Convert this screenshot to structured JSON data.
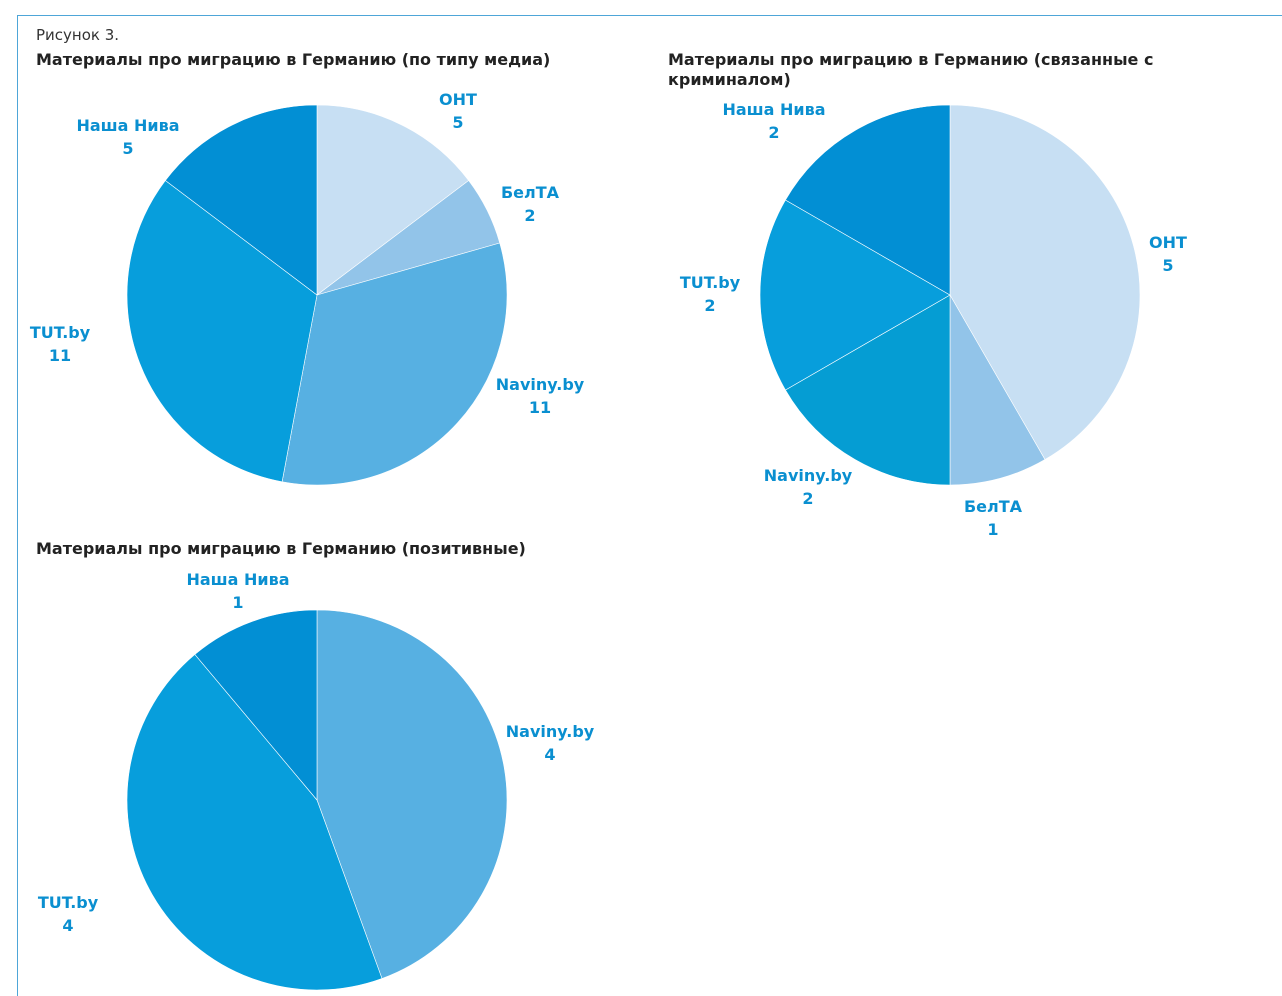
{
  "figure": {
    "caption": "Рисунок 3."
  },
  "chart_data": [
    {
      "type": "pie",
      "title": "Материалы про миграцию в Германию (по типу медиа)",
      "slices": [
        {
          "label": "ОНТ",
          "value": 5,
          "color": "#c7dff3"
        },
        {
          "label": "БелТА",
          "value": 2,
          "color": "#92c4e9"
        },
        {
          "label": "Naviny.by",
          "value": 11,
          "color": "#57b0e2"
        },
        {
          "label": "TUT.by",
          "value": 11,
          "color": "#079edc"
        },
        {
          "label": "Наша Нива",
          "value": 5,
          "color": "#028fd4"
        }
      ]
    },
    {
      "type": "pie",
      "title": "Материалы про миграцию в Германию (связанные с криминалом)",
      "slices": [
        {
          "label": "ОНТ",
          "value": 5,
          "color": "#c7dff3"
        },
        {
          "label": "БелТА",
          "value": 1,
          "color": "#92c4e9"
        },
        {
          "label": "Naviny.by",
          "value": 2,
          "color": "#059dd3"
        },
        {
          "label": "TUT.by",
          "value": 2,
          "color": "#079edc"
        },
        {
          "label": "Наша Нива",
          "value": 2,
          "color": "#028fd4"
        }
      ]
    },
    {
      "type": "pie",
      "title": "Материалы про миграцию в Германию (позитивные)",
      "slices": [
        {
          "label": "Naviny.by",
          "value": 4,
          "color": "#57b0e2"
        },
        {
          "label": "TUT.by",
          "value": 4,
          "color": "#079edc"
        },
        {
          "label": "Наша Нива",
          "value": 1,
          "color": "#028fd4"
        }
      ]
    }
  ]
}
